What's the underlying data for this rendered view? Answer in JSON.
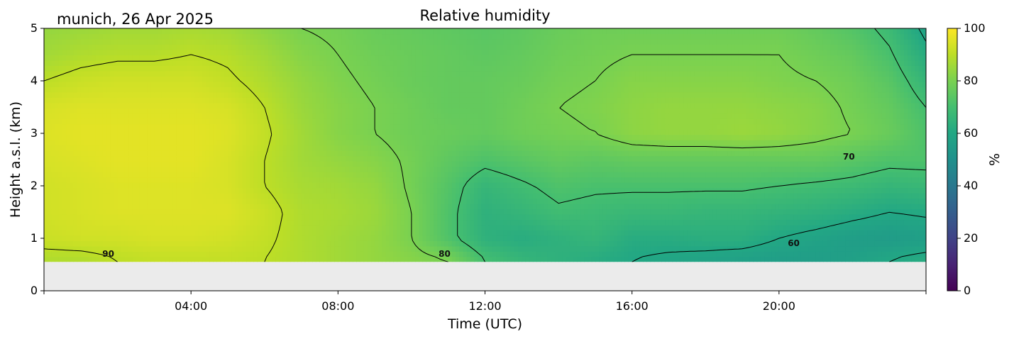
{
  "chart_data": {
    "type": "heatmap",
    "title": "Relative humidity",
    "location_label": "munich, 26 Apr 2025",
    "xlabel": "Time (UTC)",
    "ylabel": "Height a.s.l. (km)",
    "colorbar_label": "%",
    "x_range_hours": [
      0,
      24
    ],
    "ylim": [
      0,
      5
    ],
    "color_range": [
      0,
      100
    ],
    "colormap": "viridis",
    "no_data_below_km": 0.55,
    "no_data_color": "#ebebeb",
    "x_ticks": [
      "04:00",
      "08:00",
      "12:00",
      "16:00",
      "20:00"
    ],
    "x_tick_hours": [
      4,
      8,
      12,
      16,
      20
    ],
    "y_ticks": [
      "0",
      "1",
      "2",
      "3",
      "4",
      "5"
    ],
    "y_tick_values": [
      0,
      1,
      2,
      3,
      4,
      5
    ],
    "colorbar_ticks": [
      "0",
      "20",
      "40",
      "60",
      "80",
      "100"
    ],
    "colorbar_tick_values": [
      0,
      20,
      40,
      60,
      80,
      100
    ],
    "contour_levels": [
      60,
      70,
      80,
      90
    ],
    "contour_labels": [
      {
        "text": "90",
        "hour": 1.75,
        "km": 0.65
      },
      {
        "text": "80",
        "hour": 10.9,
        "km": 0.65
      },
      {
        "text": "70",
        "hour": 21.9,
        "km": 2.5
      },
      {
        "text": "60",
        "hour": 20.4,
        "km": 0.85
      }
    ],
    "hours": [
      0,
      1,
      2,
      3,
      4,
      5,
      6,
      7,
      8,
      9,
      10,
      11,
      12,
      13,
      14,
      15,
      16,
      17,
      18,
      19,
      20,
      21,
      22,
      23,
      24
    ],
    "heights_km": [
      0.6,
      1.0,
      1.5,
      2.0,
      2.5,
      3.0,
      3.5,
      4.0,
      4.5,
      5.0
    ],
    "values": [
      [
        88,
        88,
        90,
        91,
        91,
        91,
        90,
        88,
        86,
        84,
        82,
        80,
        70,
        66,
        64,
        62,
        60,
        59,
        58,
        57,
        56,
        56,
        57,
        60,
        62
      ],
      [
        92,
        93,
        93,
        94,
        94,
        93,
        91,
        88,
        86,
        84,
        80,
        72,
        64,
        62,
        64,
        66,
        62,
        62,
        63,
        63,
        60,
        58,
        56,
        55,
        56
      ],
      [
        93,
        94,
        95,
        95,
        95,
        95,
        92,
        88,
        87,
        85,
        80,
        72,
        64,
        66,
        69,
        68,
        67,
        67,
        66,
        66,
        65,
        64,
        62,
        60,
        61
      ],
      [
        93,
        94,
        95,
        95,
        95,
        94,
        90,
        87,
        86,
        84,
        79,
        73,
        66,
        69,
        72,
        71,
        71,
        71,
        71,
        71,
        70,
        69,
        68,
        66,
        67
      ],
      [
        94,
        95,
        96,
        96,
        96,
        94,
        90,
        86,
        84,
        82,
        79,
        75,
        72,
        74,
        76,
        75,
        76,
        76,
        76,
        76,
        76,
        76,
        74,
        72,
        72
      ],
      [
        95,
        96,
        96,
        96,
        96,
        95,
        91,
        86,
        82,
        80,
        78,
        77,
        76,
        78,
        79,
        80,
        83,
        84,
        84,
        85,
        84,
        82,
        80,
        77,
        72
      ],
      [
        94,
        95,
        95,
        95,
        95,
        94,
        90,
        85,
        82,
        80,
        78,
        76,
        76,
        78,
        80,
        81,
        83,
        84,
        84,
        84,
        83,
        82,
        79,
        76,
        70
      ],
      [
        90,
        92,
        93,
        93,
        93,
        91,
        88,
        84,
        81,
        79,
        77,
        76,
        76,
        77,
        79,
        80,
        82,
        82,
        82,
        82,
        81,
        80,
        78,
        74,
        66
      ],
      [
        86,
        88,
        89,
        89,
        90,
        89,
        86,
        82,
        80,
        78,
        77,
        76,
        75,
        76,
        78,
        79,
        80,
        80,
        80,
        80,
        80,
        78,
        76,
        71,
        62
      ],
      [
        84,
        85,
        86,
        86,
        87,
        86,
        83,
        80,
        79,
        77,
        76,
        75,
        74,
        75,
        77,
        78,
        78,
        78,
        78,
        78,
        78,
        76,
        73,
        68,
        58
      ]
    ],
    "colors": {
      "contour_line": "#000000",
      "axis": "#000000",
      "background": "#ffffff"
    }
  }
}
